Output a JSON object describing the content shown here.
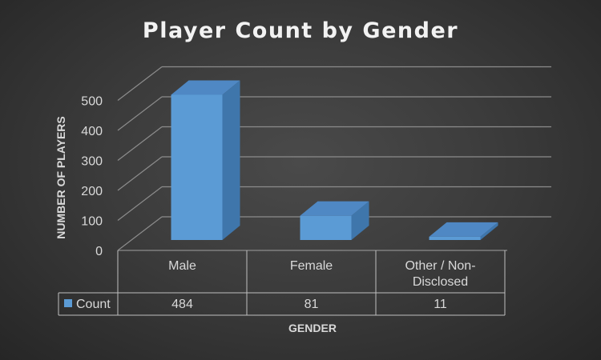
{
  "chart_data": {
    "type": "bar",
    "title": "Player Count by Gender",
    "xlabel": "GENDER",
    "ylabel": "NUMBER OF PLAYERS",
    "categories": [
      "Male",
      "Female",
      "Other / Non-Disclosed"
    ],
    "category_lines": [
      [
        "Male"
      ],
      [
        "Female"
      ],
      [
        "Other / Non-",
        "Disclosed"
      ]
    ],
    "series": [
      {
        "name": "Count",
        "values": [
          484,
          81,
          11
        ],
        "color": "#5b9bd5"
      }
    ],
    "ylim": [
      0,
      500
    ],
    "yticks": [
      "0",
      "100",
      "200",
      "300",
      "400",
      "500"
    ],
    "grid": true,
    "legend": "data-table",
    "data_table": true,
    "style": "3d-column"
  },
  "colors": {
    "background": "#3a3a3a",
    "bar_front": "#5b9bd5",
    "bar_side": "#3f76ab",
    "bar_top": "#4f88c4",
    "grid": "#8c8c8c",
    "text": "#d9d9d9"
  }
}
